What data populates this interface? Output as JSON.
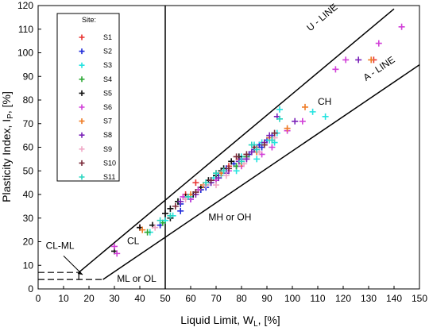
{
  "chart_data": {
    "type": "scatter",
    "title": "",
    "xlabel": "Liquid Limit,  W",
    "xlabel_sub": "L",
    "xlabel_tail": ",  [%]",
    "ylabel": "Plasticity Index,  I",
    "ylabel_sub": "P",
    "ylabel_tail": ",  [%]",
    "xlim": [
      0,
      150
    ],
    "ylim": [
      0,
      120
    ],
    "xticks": [
      0,
      10,
      20,
      30,
      40,
      50,
      60,
      70,
      80,
      90,
      100,
      110,
      120,
      130,
      140,
      150
    ],
    "yticks": [
      0,
      10,
      20,
      30,
      40,
      50,
      60,
      70,
      80,
      90,
      100,
      110,
      120
    ],
    "grid": false,
    "legend": {
      "title": "Site:",
      "placement": "top-left"
    },
    "reference_lines": [
      {
        "name": "A-line",
        "points": [
          [
            25.5,
            4
          ],
          [
            150,
            94.9
          ]
        ]
      },
      {
        "name": "U-line",
        "points": [
          [
            16,
            7
          ],
          [
            140,
            118.6
          ]
        ]
      },
      {
        "name": "LL=50",
        "points": [
          [
            50,
            0
          ],
          [
            50,
            120
          ]
        ]
      },
      {
        "name": "ML-CL lower",
        "points": [
          [
            0,
            4
          ],
          [
            25.5,
            4
          ]
        ]
      },
      {
        "name": "ML-CL upper",
        "points": [
          [
            0,
            7
          ],
          [
            16,
            7
          ]
        ]
      }
    ],
    "zone_labels": [
      {
        "text": "U - LINE",
        "x": 107,
        "y": 109,
        "rotate": -40
      },
      {
        "text": "A - LINE",
        "x": 129,
        "y": 88,
        "rotate": -34
      },
      {
        "text": "CH",
        "x": 110,
        "y": 78
      },
      {
        "text": "CL",
        "x": 35,
        "y": 19
      },
      {
        "text": "CL-ML",
        "x": 3,
        "y": 17
      },
      {
        "text": "MH or OH",
        "x": 67,
        "y": 29
      },
      {
        "text": "ML or OL",
        "x": 31,
        "y": 3
      }
    ],
    "series": [
      {
        "name": "S1",
        "color": "#e8312f",
        "points": [
          [
            40,
            26
          ],
          [
            62,
            45
          ],
          [
            70,
            49
          ],
          [
            79,
            55
          ],
          [
            86,
            60
          ],
          [
            132,
            97
          ],
          [
            58,
            40
          ],
          [
            75,
            52
          ]
        ]
      },
      {
        "name": "S2",
        "color": "#1f2bd9",
        "points": [
          [
            48,
            27
          ],
          [
            56,
            33
          ],
          [
            60,
            38
          ],
          [
            66,
            43
          ],
          [
            68,
            45
          ],
          [
            72,
            49
          ],
          [
            74,
            51
          ],
          [
            78,
            52
          ],
          [
            80,
            55
          ],
          [
            83,
            57
          ],
          [
            85,
            59
          ],
          [
            87,
            61
          ],
          [
            90,
            63
          ],
          [
            92,
            65
          ],
          [
            56,
            36
          ],
          [
            64,
            42
          ],
          [
            71,
            48
          ],
          [
            77,
            53
          ],
          [
            82,
            56
          ],
          [
            88,
            60
          ]
        ]
      },
      {
        "name": "S3",
        "color": "#25e3e0",
        "points": [
          [
            44,
            24
          ],
          [
            50,
            29
          ],
          [
            60,
            39
          ],
          [
            72,
            48
          ],
          [
            78,
            50
          ],
          [
            85,
            61
          ],
          [
            88,
            62
          ],
          [
            91,
            63
          ],
          [
            94,
            66
          ],
          [
            95,
            76
          ],
          [
            108,
            75
          ],
          [
            113,
            73
          ],
          [
            69,
            47
          ],
          [
            80,
            56
          ],
          [
            86,
            55
          ],
          [
            93,
            62
          ],
          [
            53,
            31
          ]
        ]
      },
      {
        "name": "S4",
        "color": "#2ea836",
        "points": [
          [
            43,
            24
          ],
          [
            49,
            28
          ],
          [
            55,
            37
          ],
          [
            63,
            42
          ],
          [
            70,
            46
          ],
          [
            75,
            50
          ],
          [
            82,
            56
          ],
          [
            78,
            52
          ]
        ]
      },
      {
        "name": "S5",
        "color": "#111111",
        "points": [
          [
            30,
            16
          ],
          [
            40,
            26
          ],
          [
            45,
            27
          ],
          [
            50,
            32
          ],
          [
            52,
            34
          ],
          [
            55,
            37
          ],
          [
            58,
            39
          ],
          [
            61,
            40
          ],
          [
            64,
            43
          ],
          [
            67,
            46
          ],
          [
            70,
            48
          ],
          [
            73,
            51
          ],
          [
            76,
            54
          ],
          [
            79,
            56
          ],
          [
            52,
            30
          ],
          [
            66,
            44
          ],
          [
            72,
            50
          ]
        ]
      },
      {
        "name": "S6",
        "color": "#d13fd8",
        "points": [
          [
            30,
            18
          ],
          [
            31,
            15
          ],
          [
            57,
            39
          ],
          [
            63,
            42
          ],
          [
            70,
            46
          ],
          [
            75,
            50
          ],
          [
            82,
            55
          ],
          [
            86,
            58
          ],
          [
            92,
            60
          ],
          [
            98,
            67
          ],
          [
            104,
            71
          ],
          [
            117,
            93
          ],
          [
            121,
            97
          ],
          [
            134,
            104
          ],
          [
            143,
            111
          ],
          [
            80,
            52
          ],
          [
            88,
            57
          ],
          [
            60,
            38
          ]
        ]
      },
      {
        "name": "S7",
        "color": "#ef7c26",
        "points": [
          [
            41,
            25
          ],
          [
            60,
            40
          ],
          [
            72,
            49
          ],
          [
            80,
            53
          ],
          [
            86,
            58
          ],
          [
            91,
            64
          ],
          [
            98,
            68
          ],
          [
            105,
            77
          ],
          [
            131,
            97
          ],
          [
            65,
            44
          ]
        ]
      },
      {
        "name": "S8",
        "color": "#7a22b8",
        "points": [
          [
            56,
            37
          ],
          [
            62,
            40
          ],
          [
            68,
            45
          ],
          [
            74,
            49
          ],
          [
            79,
            54
          ],
          [
            84,
            58
          ],
          [
            89,
            62
          ],
          [
            94,
            73
          ],
          [
            101,
            71
          ],
          [
            126,
            97
          ],
          [
            71,
            47
          ],
          [
            82,
            55
          ],
          [
            91,
            65
          ]
        ]
      },
      {
        "name": "S9",
        "color": "#f0a8c6",
        "points": [
          [
            46,
            26
          ],
          [
            58,
            38
          ],
          [
            66,
            44
          ],
          [
            74,
            48
          ],
          [
            81,
            53
          ],
          [
            87,
            58
          ],
          [
            93,
            64
          ],
          [
            70,
            44
          ]
        ]
      },
      {
        "name": "S10",
        "color": "#7a2a3a",
        "points": [
          [
            54,
            35
          ],
          [
            62,
            41
          ],
          [
            68,
            46
          ],
          [
            75,
            51
          ],
          [
            82,
            57
          ],
          [
            89,
            61
          ],
          [
            93,
            66
          ],
          [
            78,
            56
          ],
          [
            85,
            60
          ]
        ]
      },
      {
        "name": "S11",
        "color": "#29d6c0",
        "points": [
          [
            48,
            29
          ],
          [
            52,
            31
          ],
          [
            59,
            39
          ],
          [
            66,
            45
          ],
          [
            73,
            50
          ],
          [
            80,
            54
          ],
          [
            86,
            59
          ],
          [
            92,
            63
          ],
          [
            95,
            72
          ],
          [
            84,
            61
          ],
          [
            70,
            49
          ]
        ]
      }
    ]
  }
}
